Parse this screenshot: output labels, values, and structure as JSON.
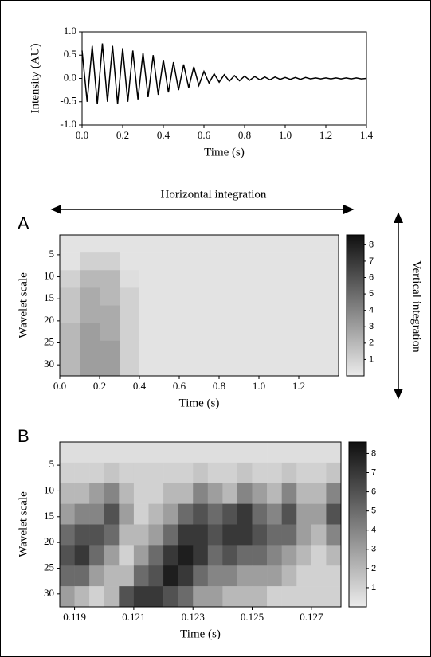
{
  "chart_data": [
    {
      "type": "line",
      "color": "#000000",
      "xlabel": "Time (s)",
      "ylabel": "Intensity (AU)",
      "x": [
        0,
        0.025,
        0.05,
        0.075,
        0.1,
        0.125,
        0.15,
        0.175,
        0.2,
        0.225,
        0.25,
        0.275,
        0.3,
        0.325,
        0.35,
        0.375,
        0.4,
        0.425,
        0.45,
        0.475,
        0.5,
        0.525,
        0.55,
        0.575,
        0.6,
        0.625,
        0.65,
        0.675,
        0.7,
        0.725,
        0.75,
        0.775,
        0.8,
        0.825,
        0.85,
        0.875,
        0.9,
        0.925,
        0.95,
        0.975,
        1,
        1.025,
        1.05,
        1.075,
        1.1,
        1.125,
        1.15,
        1.175,
        1.2,
        1.225,
        1.25,
        1.275,
        1.3,
        1.325,
        1.35,
        1.375,
        1.4
      ],
      "values": [
        0.6,
        -0.5,
        0.7,
        -0.55,
        0.75,
        -0.5,
        0.7,
        -0.55,
        0.65,
        -0.5,
        0.6,
        -0.45,
        0.55,
        -0.4,
        0.5,
        -0.35,
        0.4,
        -0.3,
        0.35,
        -0.25,
        0.3,
        -0.2,
        0.25,
        -0.15,
        0.15,
        -0.1,
        0.1,
        -0.08,
        0.08,
        -0.06,
        0.06,
        -0.05,
        0.05,
        -0.04,
        0.04,
        -0.03,
        0.03,
        -0.03,
        0.03,
        -0.02,
        0.02,
        -0.02,
        0.02,
        -0.02,
        0.02,
        -0.01,
        0.01,
        -0.01,
        0.01,
        -0.01,
        0.01,
        -0.01,
        0.01,
        -0.01,
        0.01,
        -0.01,
        0
      ],
      "xlim": [
        0,
        1.4
      ],
      "ylim": [
        -1,
        1
      ],
      "xticks": [
        {
          "value": 0,
          "label": "0.0"
        },
        {
          "value": 0.2,
          "label": "0.2"
        },
        {
          "value": 0.4,
          "label": "0.4"
        },
        {
          "value": 0.6,
          "label": "0.6"
        },
        {
          "value": 0.8,
          "label": "0.8"
        },
        {
          "value": 1,
          "label": "1.0"
        },
        {
          "value": 1.2,
          "label": "1.2"
        },
        {
          "value": 1.4,
          "label": "1.4"
        }
      ],
      "yticks": [
        {
          "value": -1,
          "label": "-1.0"
        },
        {
          "value": -0.5,
          "label": "-0.5"
        },
        {
          "value": 0,
          "label": "0.0"
        },
        {
          "value": 0.5,
          "label": "0.5"
        },
        {
          "value": 1,
          "label": "1.0"
        }
      ]
    },
    {
      "type": "heatmap",
      "panel_label": "A",
      "xlabel": "Time (s)",
      "ylabel": "Wavelet scale",
      "x": [
        0.05,
        0.15,
        0.25,
        0.35,
        0.45,
        0.55,
        0.65,
        0.75,
        0.85,
        0.95,
        1.05,
        1.15,
        1.25,
        1.35
      ],
      "y": [
        2.5,
        6.5,
        10.5,
        14.5,
        18.5,
        22.5,
        26.5,
        30.5
      ],
      "values": [
        [
          0.3,
          0.3,
          0.3,
          0.3,
          0.3,
          0.3,
          0.3,
          0.3,
          0.3,
          0.3,
          0.3,
          0.3,
          0.3,
          0.3
        ],
        [
          0.3,
          1,
          1,
          0.3,
          0.3,
          0.3,
          0.3,
          0.3,
          0.3,
          0.3,
          0.3,
          0.3,
          0.3,
          0.3
        ],
        [
          1,
          2,
          2,
          0.5,
          0.3,
          0.3,
          0.3,
          0.3,
          0.3,
          0.3,
          0.3,
          0.3,
          0.3,
          0.3
        ],
        [
          1.5,
          2.5,
          2,
          1,
          0.3,
          0.3,
          0.3,
          0.3,
          0.3,
          0.3,
          0.3,
          0.3,
          0.3,
          0.3
        ],
        [
          1.5,
          2.5,
          2.5,
          1,
          0.3,
          0.3,
          0.3,
          0.3,
          0.3,
          0.3,
          0.3,
          0.3,
          0.3,
          0.3
        ],
        [
          2,
          3,
          2.5,
          1,
          0.3,
          0.3,
          0.3,
          0.3,
          0.3,
          0.3,
          0.3,
          0.3,
          0.3,
          0.3
        ],
        [
          2,
          3,
          3,
          1,
          0.3,
          0.3,
          0.3,
          0.3,
          0.3,
          0.3,
          0.3,
          0.3,
          0.3,
          0.3
        ],
        [
          2,
          3,
          3,
          1,
          0.3,
          0.3,
          0.3,
          0.3,
          0.3,
          0.3,
          0.3,
          0.3,
          0.3,
          0.3
        ]
      ],
      "xlim": [
        0,
        1.4
      ],
      "ylim": [
        32.5,
        0.5
      ],
      "zlim": [
        0,
        8.6
      ],
      "xticks": [
        {
          "value": 0,
          "label": "0.0"
        },
        {
          "value": 0.2,
          "label": "0.2"
        },
        {
          "value": 0.4,
          "label": "0.4"
        },
        {
          "value": 0.6,
          "label": "0.6"
        },
        {
          "value": 0.8,
          "label": "0.8"
        },
        {
          "value": 1,
          "label": "1.0"
        },
        {
          "value": 1.2,
          "label": "1.2"
        }
      ],
      "yticks": [
        5,
        10,
        15,
        20,
        25,
        30
      ],
      "zticks": [
        1,
        2,
        3,
        4,
        5,
        6,
        7,
        8
      ]
    },
    {
      "type": "heatmap",
      "panel_label": "B",
      "xlabel": "Time (s)",
      "ylabel": "Wavelet scale",
      "x": [
        0.11875,
        0.11925,
        0.11975,
        0.12025,
        0.12075,
        0.12125,
        0.12175,
        0.12225,
        0.12275,
        0.12325,
        0.12375,
        0.12425,
        0.12475,
        0.12525,
        0.12575,
        0.12625,
        0.12675,
        0.12725,
        0.12775
      ],
      "y": [
        2.5,
        6.5,
        10.5,
        14.5,
        18.5,
        22.5,
        26.5,
        30.5
      ],
      "values": [
        [
          0.5,
          0.5,
          0.5,
          0.5,
          0.5,
          0.5,
          0.5,
          0.5,
          0.5,
          0.5,
          0.5,
          0.5,
          0.5,
          0.5,
          0.5,
          0.5,
          0.5,
          0.5,
          0.5
        ],
        [
          1,
          1,
          1,
          1.5,
          1,
          1,
          1,
          1,
          1,
          1.5,
          1,
          1,
          1.5,
          1,
          1,
          1.5,
          1,
          1,
          1.5
        ],
        [
          2,
          2,
          3,
          4,
          2,
          1,
          1,
          2,
          2,
          4,
          3,
          2,
          4,
          3,
          2,
          4,
          2,
          2,
          4
        ],
        [
          3,
          4,
          4,
          6,
          3,
          1,
          2,
          3,
          5,
          6,
          5,
          6,
          7,
          5,
          4,
          6,
          3,
          3,
          6
        ],
        [
          5,
          6,
          6,
          5,
          2,
          2,
          3,
          5,
          7,
          7,
          6,
          7,
          7,
          6,
          5,
          5,
          3,
          2,
          4
        ],
        [
          6,
          7,
          5,
          3,
          1,
          3,
          5,
          7,
          8,
          7,
          5,
          6,
          5,
          5,
          4,
          3,
          2,
          1,
          2
        ],
        [
          5,
          5,
          3,
          2,
          2,
          5,
          6,
          8,
          7,
          5,
          4,
          4,
          3,
          3,
          3,
          2,
          1,
          1,
          1
        ],
        [
          3,
          2,
          1,
          2,
          6,
          7,
          7,
          6,
          5,
          3,
          3,
          2,
          2,
          2,
          1,
          1,
          1,
          1,
          1
        ]
      ],
      "xlim": [
        0.1185,
        0.128
      ],
      "ylim": [
        32.5,
        0.5
      ],
      "zlim": [
        0,
        8.6
      ],
      "xticks": [
        0.119,
        0.121,
        0.123,
        0.125,
        0.127
      ],
      "yticks": [
        5,
        10,
        15,
        20,
        25,
        30
      ],
      "zticks": [
        1,
        2,
        3,
        4,
        5,
        6,
        7,
        8
      ]
    }
  ],
  "annotations": {
    "horizontal": "Horizontal integration",
    "vertical": "Vertical integration"
  }
}
